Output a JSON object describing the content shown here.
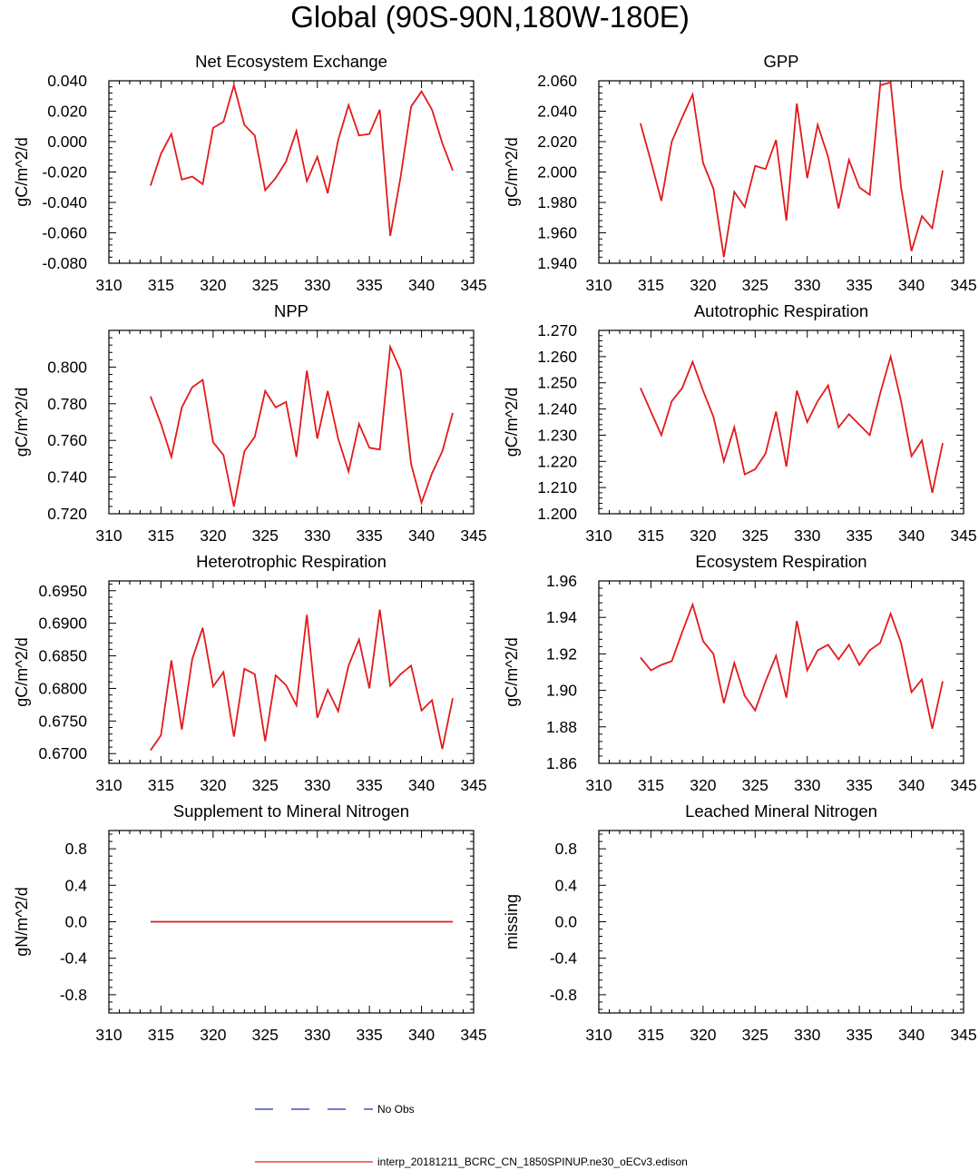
{
  "page_title": "Global (90S-90N,180W-180E)",
  "legend": {
    "entries": [
      {
        "label": "No Obs",
        "color": "#1f2fb0",
        "style": "dashed"
      },
      {
        "label": "interp_20181211_BCRC_CN_1850SPINUP.ne30_oECv3.edison",
        "color": "#e31a1c",
        "style": "solid"
      }
    ]
  },
  "chart_data": [
    {
      "type": "line",
      "title": "Net Ecosystem Exchange",
      "ylabel": "gC/m^2/d",
      "xlim": [
        310,
        345
      ],
      "ylim": [
        -0.08,
        0.04
      ],
      "xticks": [
        310,
        315,
        320,
        325,
        330,
        335,
        340,
        345
      ],
      "yticks": [
        -0.08,
        -0.06,
        -0.04,
        -0.02,
        0.0,
        0.02,
        0.04
      ],
      "ytick_labels": [
        "-0.080",
        "-0.060",
        "-0.040",
        "-0.020",
        "0.000",
        "0.020",
        "0.040"
      ],
      "color": "#e31a1c",
      "series": [
        {
          "x": [
            314,
            315,
            316,
            317,
            318,
            319,
            320,
            321,
            322,
            323,
            324,
            325,
            326,
            327,
            328,
            329,
            330,
            331,
            332,
            333,
            334,
            335,
            336,
            337,
            338,
            339,
            340,
            341,
            342,
            343
          ],
          "values": [
            -0.029,
            -0.008,
            0.005,
            -0.025,
            -0.023,
            -0.028,
            0.009,
            0.013,
            0.037,
            0.011,
            0.004,
            -0.032,
            -0.024,
            -0.013,
            0.007,
            -0.026,
            -0.01,
            -0.034,
            0.001,
            0.024,
            0.004,
            0.005,
            0.021,
            -0.062,
            -0.023,
            0.023,
            0.033,
            0.021,
            -0.001,
            -0.019
          ]
        }
      ]
    },
    {
      "type": "line",
      "title": "GPP",
      "ylabel": "gC/m^2/d",
      "xlim": [
        310,
        345
      ],
      "ylim": [
        1.94,
        2.06
      ],
      "xticks": [
        310,
        315,
        320,
        325,
        330,
        335,
        340,
        345
      ],
      "yticks": [
        1.94,
        1.96,
        1.98,
        2.0,
        2.02,
        2.04,
        2.06
      ],
      "ytick_labels": [
        "1.940",
        "1.960",
        "1.980",
        "2.000",
        "2.020",
        "2.040",
        "2.060"
      ],
      "color": "#e31a1c",
      "series": [
        {
          "x": [
            314,
            315,
            316,
            317,
            318,
            319,
            320,
            321,
            322,
            323,
            324,
            325,
            326,
            327,
            328,
            329,
            330,
            331,
            332,
            333,
            334,
            335,
            336,
            337,
            338,
            339,
            340,
            341,
            342,
            343
          ],
          "values": [
            2.032,
            2.007,
            1.981,
            2.02,
            2.036,
            2.051,
            2.006,
            1.989,
            1.944,
            1.987,
            1.977,
            2.004,
            2.002,
            2.021,
            1.968,
            2.045,
            1.996,
            2.031,
            2.01,
            1.976,
            2.008,
            1.99,
            1.985,
            2.057,
            2.059,
            1.99,
            1.948,
            1.971,
            1.963,
            2.001
          ]
        }
      ]
    },
    {
      "type": "line",
      "title": "NPP",
      "ylabel": "gC/m^2/d",
      "xlim": [
        310,
        345
      ],
      "ylim": [
        0.72,
        0.82
      ],
      "xticks": [
        310,
        315,
        320,
        325,
        330,
        335,
        340,
        345
      ],
      "yticks": [
        0.72,
        0.74,
        0.76,
        0.78,
        0.8
      ],
      "ytick_labels": [
        "0.720",
        "0.740",
        "0.760",
        "0.780",
        "0.800"
      ],
      "color": "#e31a1c",
      "series": [
        {
          "x": [
            314,
            315,
            316,
            317,
            318,
            319,
            320,
            321,
            322,
            323,
            324,
            325,
            326,
            327,
            328,
            329,
            330,
            331,
            332,
            333,
            334,
            335,
            336,
            337,
            338,
            339,
            340,
            341,
            342,
            343
          ],
          "values": [
            0.784,
            0.769,
            0.751,
            0.778,
            0.789,
            0.793,
            0.759,
            0.752,
            0.724,
            0.754,
            0.762,
            0.787,
            0.778,
            0.781,
            0.751,
            0.798,
            0.761,
            0.787,
            0.761,
            0.743,
            0.769,
            0.756,
            0.755,
            0.811,
            0.798,
            0.747,
            0.726,
            0.742,
            0.754,
            0.775
          ]
        }
      ]
    },
    {
      "type": "line",
      "title": "Autotrophic Respiration",
      "ylabel": "gC/m^2/d",
      "xlim": [
        310,
        345
      ],
      "ylim": [
        1.2,
        1.27
      ],
      "xticks": [
        310,
        315,
        320,
        325,
        330,
        335,
        340,
        345
      ],
      "yticks": [
        1.2,
        1.21,
        1.22,
        1.23,
        1.24,
        1.25,
        1.26,
        1.27
      ],
      "ytick_labels": [
        "1.200",
        "1.210",
        "1.220",
        "1.230",
        "1.240",
        "1.250",
        "1.260",
        "1.270"
      ],
      "color": "#e31a1c",
      "series": [
        {
          "x": [
            314,
            315,
            316,
            317,
            318,
            319,
            320,
            321,
            322,
            323,
            324,
            325,
            326,
            327,
            328,
            329,
            330,
            331,
            332,
            333,
            334,
            335,
            336,
            337,
            338,
            339,
            340,
            341,
            342,
            343
          ],
          "values": [
            1.248,
            1.239,
            1.23,
            1.243,
            1.248,
            1.258,
            1.247,
            1.237,
            1.22,
            1.233,
            1.215,
            1.217,
            1.223,
            1.239,
            1.218,
            1.247,
            1.235,
            1.243,
            1.249,
            1.233,
            1.238,
            1.234,
            1.23,
            1.246,
            1.26,
            1.243,
            1.222,
            1.228,
            1.208,
            1.227
          ]
        }
      ]
    },
    {
      "type": "line",
      "title": "Heterotrophic Respiration",
      "ylabel": "gC/m^2/d",
      "xlim": [
        310,
        345
      ],
      "ylim": [
        0.6685,
        0.6965
      ],
      "xticks": [
        310,
        315,
        320,
        325,
        330,
        335,
        340,
        345
      ],
      "yticks": [
        0.67,
        0.675,
        0.68,
        0.685,
        0.69,
        0.695
      ],
      "ytick_labels": [
        "0.6700",
        "0.6750",
        "0.6800",
        "0.6850",
        "0.6900",
        "0.6950"
      ],
      "color": "#e31a1c",
      "series": [
        {
          "x": [
            314,
            315,
            316,
            317,
            318,
            319,
            320,
            321,
            322,
            323,
            324,
            325,
            326,
            327,
            328,
            329,
            330,
            331,
            332,
            333,
            334,
            335,
            336,
            337,
            338,
            339,
            340,
            341,
            342,
            343
          ],
          "values": [
            0.6705,
            0.6728,
            0.6843,
            0.6737,
            0.6845,
            0.6893,
            0.6803,
            0.6825,
            0.6726,
            0.683,
            0.6822,
            0.6719,
            0.682,
            0.6805,
            0.6774,
            0.6913,
            0.6755,
            0.6798,
            0.6765,
            0.6835,
            0.6875,
            0.68,
            0.6921,
            0.6804,
            0.6822,
            0.6835,
            0.6766,
            0.6782,
            0.6707,
            0.6785
          ]
        }
      ]
    },
    {
      "type": "line",
      "title": "Ecosystem Respiration",
      "ylabel": "gC/m^2/d",
      "xlim": [
        310,
        345
      ],
      "ylim": [
        1.86,
        1.96
      ],
      "xticks": [
        310,
        315,
        320,
        325,
        330,
        335,
        340,
        345
      ],
      "yticks": [
        1.86,
        1.88,
        1.9,
        1.92,
        1.94,
        1.96
      ],
      "ytick_labels": [
        "1.86",
        "1.88",
        "1.90",
        "1.92",
        "1.94",
        "1.96"
      ],
      "color": "#e31a1c",
      "series": [
        {
          "x": [
            314,
            315,
            316,
            317,
            318,
            319,
            320,
            321,
            322,
            323,
            324,
            325,
            326,
            327,
            328,
            329,
            330,
            331,
            332,
            333,
            334,
            335,
            336,
            337,
            338,
            339,
            340,
            341,
            342,
            343
          ],
          "values": [
            1.918,
            1.911,
            1.914,
            1.916,
            1.932,
            1.947,
            1.927,
            1.92,
            1.893,
            1.915,
            1.897,
            1.889,
            1.905,
            1.919,
            1.896,
            1.938,
            1.911,
            1.922,
            1.925,
            1.917,
            1.925,
            1.914,
            1.922,
            1.926,
            1.942,
            1.926,
            1.899,
            1.906,
            1.879,
            1.905
          ]
        }
      ]
    },
    {
      "type": "line",
      "title": "Supplement to Mineral Nitrogen",
      "ylabel": "gN/m^2/d",
      "xlim": [
        310,
        345
      ],
      "ylim": [
        -1,
        1
      ],
      "xticks": [
        310,
        315,
        320,
        325,
        330,
        335,
        340,
        345
      ],
      "yticks": [
        -0.8,
        -0.4,
        0.0,
        0.4,
        0.8
      ],
      "ytick_labels": [
        "-0.8",
        "-0.4",
        "0.0",
        "0.4",
        "0.8"
      ],
      "color": "#e31a1c",
      "series": [
        {
          "x": [
            314,
            315,
            316,
            317,
            318,
            319,
            320,
            321,
            322,
            323,
            324,
            325,
            326,
            327,
            328,
            329,
            330,
            331,
            332,
            333,
            334,
            335,
            336,
            337,
            338,
            339,
            340,
            341,
            342,
            343
          ],
          "values": [
            0,
            0,
            0,
            0,
            0,
            0,
            0,
            0,
            0,
            0,
            0,
            0,
            0,
            0,
            0,
            0,
            0,
            0,
            0,
            0,
            0,
            0,
            0,
            0,
            0,
            0,
            0,
            0,
            0,
            0
          ]
        }
      ]
    },
    {
      "type": "line",
      "title": "Leached Mineral Nitrogen",
      "ylabel": "missing",
      "xlim": [
        310,
        345
      ],
      "ylim": [
        -1,
        1
      ],
      "xticks": [
        310,
        315,
        320,
        325,
        330,
        335,
        340,
        345
      ],
      "yticks": [
        -0.8,
        -0.4,
        0.0,
        0.4,
        0.8
      ],
      "ytick_labels": [
        "-0.8",
        "-0.4",
        "0.0",
        "0.4",
        "0.8"
      ],
      "color": "#e31a1c",
      "series": []
    }
  ]
}
